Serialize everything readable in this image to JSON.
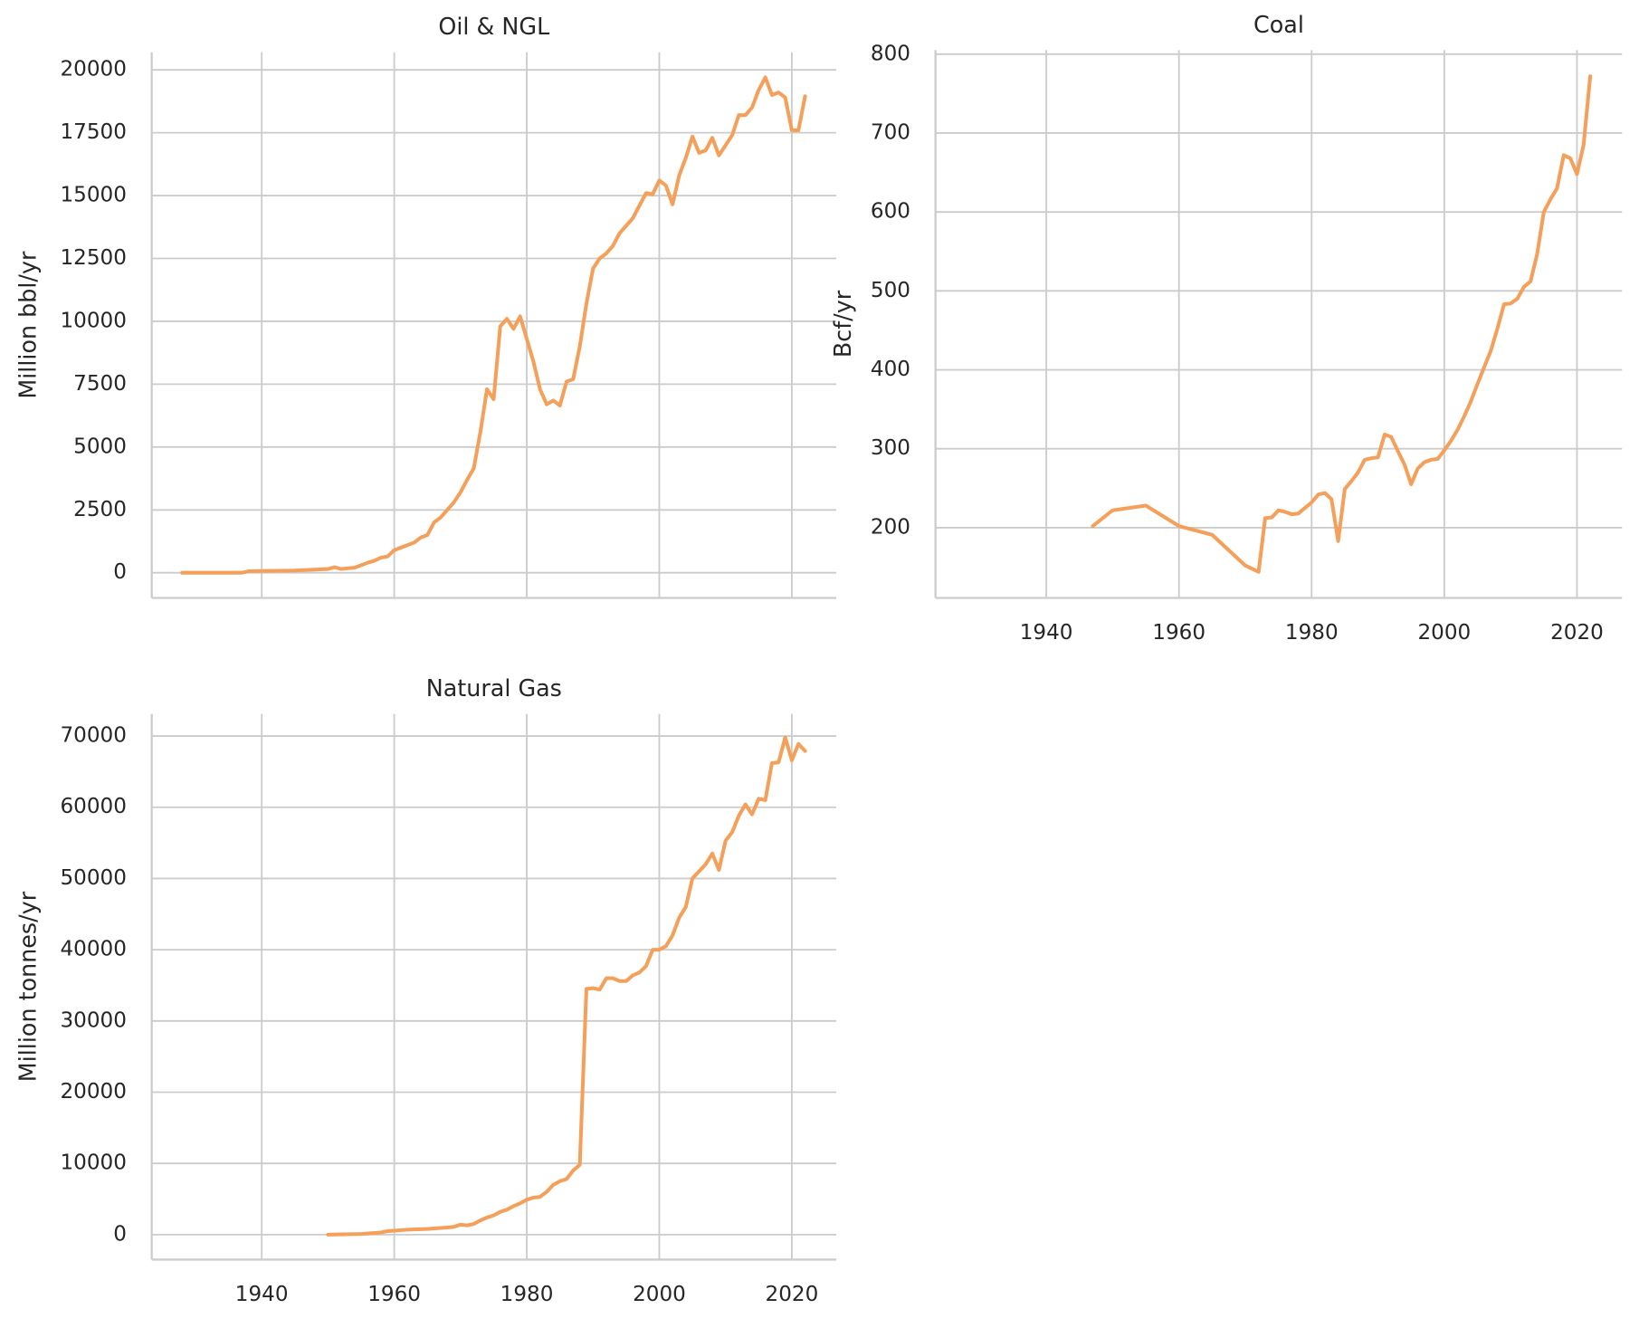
{
  "chart_data": [
    {
      "type": "line",
      "title": "Oil & NGL",
      "ylabel": "Million bbl/yr",
      "grid": true,
      "show_xtick_labels": false,
      "xlim": [
        1923.4,
        2026.7
      ],
      "xticks": [
        1940,
        1960,
        1980,
        2000,
        2020
      ],
      "ylim": [
        -1000,
        20700
      ],
      "yticks": [
        0,
        2500,
        5000,
        7500,
        10000,
        12500,
        15000,
        17500,
        20000
      ],
      "x": [
        1928,
        1930,
        1935,
        1937,
        1938,
        1940,
        1945,
        1950,
        1951,
        1952,
        1953,
        1954,
        1955,
        1956,
        1957,
        1958,
        1959,
        1960,
        1961,
        1962,
        1963,
        1964,
        1965,
        1966,
        1967,
        1968,
        1969,
        1970,
        1971,
        1972,
        1973,
        1974,
        1975,
        1976,
        1977,
        1978,
        1979,
        1980,
        1981,
        1982,
        1983,
        1984,
        1985,
        1986,
        1987,
        1988,
        1989,
        1990,
        1991,
        1992,
        1993,
        1994,
        1995,
        1996,
        1997,
        1998,
        1999,
        2000,
        2001,
        2002,
        2003,
        2004,
        2005,
        2006,
        2007,
        2008,
        2009,
        2010,
        2011,
        2012,
        2013,
        2014,
        2015,
        2016,
        2017,
        2018,
        2019,
        2020,
        2021,
        2022
      ],
      "series": [
        {
          "name": "Oil & NGL",
          "color": "#f4a05a",
          "values": [
            0,
            0,
            0,
            0,
            60,
            70,
            90,
            150,
            220,
            150,
            180,
            200,
            300,
            400,
            480,
            600,
            650,
            900,
            1000,
            1100,
            1200,
            1400,
            1500,
            2000,
            2200,
            2500,
            2800,
            3200,
            3700,
            4150,
            5600,
            7300,
            6900,
            9800,
            10100,
            9700,
            10200,
            9300,
            8400,
            7300,
            6700,
            6850,
            6650,
            7600,
            7700,
            9000,
            10700,
            12100,
            12500,
            12700,
            13000,
            13500,
            13800,
            14100,
            14600,
            15100,
            15050,
            15600,
            15400,
            14650,
            15800,
            16500,
            17350,
            16700,
            16800,
            17300,
            16600,
            17000,
            17400,
            18200,
            18200,
            18500,
            19200,
            19700,
            19000,
            19100,
            18900,
            17600,
            17600,
            18950
          ]
        }
      ]
    },
    {
      "type": "line",
      "title": "Coal",
      "ylabel": "Bcf/yr",
      "grid": true,
      "show_xtick_labels": true,
      "xlim": [
        1923.3,
        2026.8
      ],
      "xticks": [
        1940,
        1960,
        1980,
        2000,
        2020
      ],
      "ylim": [
        111,
        805
      ],
      "yticks": [
        200,
        300,
        400,
        500,
        600,
        700,
        800
      ],
      "x": [
        1947,
        1950,
        1955,
        1960,
        1965,
        1970,
        1972,
        1973,
        1974,
        1975,
        1976,
        1977,
        1978,
        1979,
        1980,
        1981,
        1982,
        1983,
        1984,
        1985,
        1986,
        1987,
        1988,
        1989,
        1990,
        1991,
        1992,
        1993,
        1994,
        1995,
        1996,
        1997,
        1998,
        1999,
        2000,
        2001,
        2002,
        2003,
        2004,
        2005,
        2006,
        2007,
        2008,
        2009,
        2010,
        2011,
        2012,
        2013,
        2014,
        2015,
        2016,
        2017,
        2018,
        2019,
        2020,
        2021,
        2022
      ],
      "series": [
        {
          "name": "Coal",
          "color": "#f4a05a",
          "values": [
            202,
            222,
            228,
            202,
            191,
            152,
            144,
            212,
            213,
            222,
            220,
            217,
            218,
            225,
            232,
            242,
            244,
            236,
            183,
            249,
            259,
            270,
            286,
            288,
            289,
            318,
            315,
            297,
            280,
            255,
            275,
            283,
            286,
            287,
            298,
            310,
            324,
            341,
            360,
            382,
            403,
            424,
            452,
            483,
            484,
            490,
            505,
            512,
            547,
            600,
            616,
            630,
            672,
            668,
            648,
            685,
            772
          ]
        }
      ]
    },
    {
      "type": "line",
      "title": "Natural Gas",
      "ylabel": "Million tonnes/yr",
      "grid": true,
      "show_xtick_labels": true,
      "xlim": [
        1923.4,
        2026.7
      ],
      "xticks": [
        1940,
        1960,
        1980,
        2000,
        2020
      ],
      "ylim": [
        -3500,
        73100
      ],
      "yticks": [
        0,
        10000,
        20000,
        30000,
        40000,
        50000,
        60000,
        70000
      ],
      "x": [
        1950,
        1955,
        1958,
        1959,
        1960,
        1962,
        1965,
        1968,
        1969,
        1970,
        1971,
        1972,
        1973,
        1974,
        1975,
        1976,
        1977,
        1978,
        1979,
        1980,
        1981,
        1982,
        1983,
        1984,
        1985,
        1986,
        1987,
        1988,
        1989,
        1990,
        1991,
        1992,
        1993,
        1994,
        1995,
        1996,
        1997,
        1998,
        1999,
        2000,
        2001,
        2002,
        2003,
        2004,
        2005,
        2006,
        2007,
        2008,
        2009,
        2010,
        2011,
        2012,
        2013,
        2014,
        2015,
        2016,
        2017,
        2018,
        2019,
        2020,
        2021,
        2022
      ],
      "series": [
        {
          "name": "Natural Gas",
          "color": "#f4a05a",
          "values": [
            0,
            100,
            300,
            500,
            550,
            700,
            800,
            1000,
            1100,
            1400,
            1300,
            1500,
            2000,
            2400,
            2700,
            3200,
            3500,
            4000,
            4400,
            4900,
            5200,
            5300,
            6000,
            7000,
            7500,
            7800,
            9000,
            9800,
            34500,
            34600,
            34400,
            36000,
            36000,
            35600,
            35600,
            36400,
            36800,
            37700,
            40000,
            40000,
            40500,
            42000,
            44500,
            46000,
            50000,
            51000,
            52000,
            53500,
            51200,
            55300,
            56500,
            58800,
            60400,
            59000,
            61200,
            61000,
            66200,
            66300,
            69800,
            66600,
            68900,
            67900
          ]
        }
      ]
    }
  ]
}
